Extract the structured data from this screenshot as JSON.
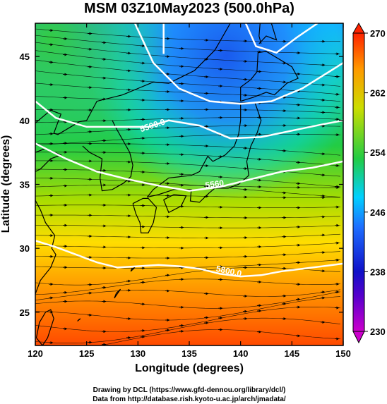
{
  "chart_data": {
    "type": "heatmap",
    "title": "MSM 03Z10May2023 (500.0hPa)",
    "xlabel": "Longitude (degrees)",
    "ylabel": "Latitude  (degrees)",
    "xlim": [
      120,
      150
    ],
    "ylim": [
      22.4,
      47.6
    ],
    "x_ticks": [
      120,
      125,
      130,
      135,
      140,
      145,
      150
    ],
    "y_ticks": [
      25,
      30,
      35,
      40,
      45
    ],
    "colorbar": {
      "min": 230,
      "max": 270,
      "ticks": [
        230,
        238,
        246,
        254,
        262,
        270
      ],
      "colors": [
        "#cc00cc",
        "#1010c8",
        "#1e6eff",
        "#00e0ff",
        "#22cc44",
        "#aadd00",
        "#ffee00",
        "#ff9900",
        "#ff3300"
      ]
    },
    "temperature_field": {
      "description_values": [
        {
          "lon": 135,
          "lat": 46,
          "value": 242
        },
        {
          "lon": 140,
          "lat": 43,
          "value": 243
        },
        {
          "lon": 122,
          "lat": 46,
          "value": 253
        },
        {
          "lon": 125,
          "lat": 38,
          "value": 255
        },
        {
          "lon": 135,
          "lat": 36,
          "value": 258
        },
        {
          "lon": 130,
          "lat": 32,
          "value": 262
        },
        {
          "lon": 130,
          "lat": 27,
          "value": 266
        },
        {
          "lon": 145,
          "lat": 25,
          "value": 267
        }
      ]
    },
    "contours": [
      {
        "value": 5500,
        "label": "5500.0"
      },
      {
        "value": 5560,
        "label": "5560"
      },
      {
        "value": 5800,
        "label": "5800.0"
      }
    ],
    "grid": false
  },
  "credits": {
    "line1": "Drawing by DCL (https://www.gfd-dennou.org/library/dcl/)",
    "line2": "Data from http://database.rish.kyoto-u.ac.jp/arch/jmadata/"
  },
  "colors": {
    "coastline": "#000000",
    "contour": "#ffffff",
    "streamline": "#000000"
  }
}
